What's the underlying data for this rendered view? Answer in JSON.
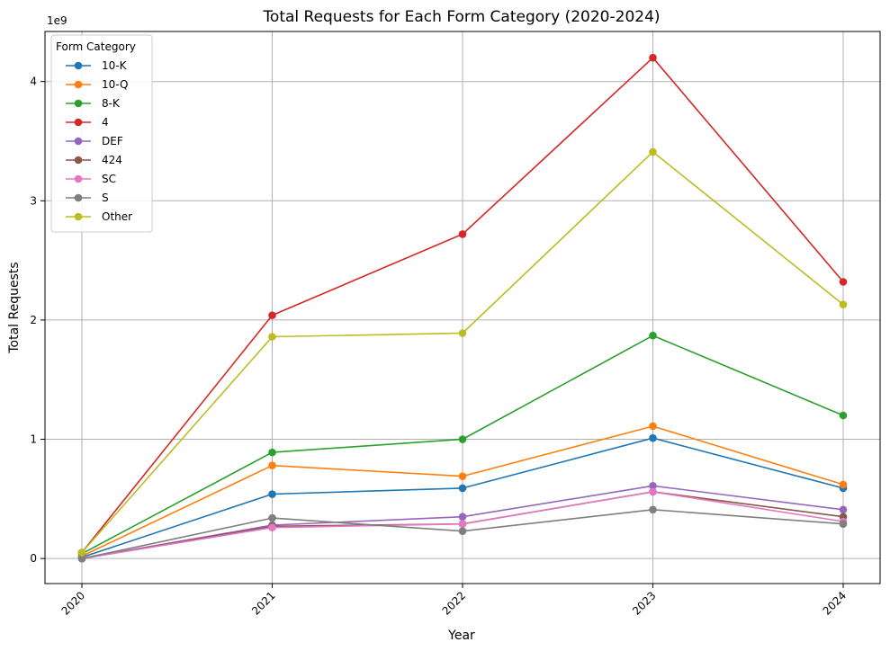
{
  "chart_data": {
    "type": "line",
    "title": "Total Requests for Each Form Category (2020-2024)",
    "xlabel": "Year",
    "ylabel": "Total Requests",
    "y_scale_label": "1e9",
    "x": [
      "2020",
      "2021",
      "2022",
      "2023",
      "2024"
    ],
    "y_ticks": [
      0,
      1,
      2,
      3,
      4
    ],
    "ylim": [
      -0.21,
      4.42
    ],
    "grid": true,
    "legend_title": "Form Category",
    "legend_position": "top-left",
    "series": [
      {
        "name": "10-K",
        "color": "#1f77b4",
        "values": [
          0.01,
          0.54,
          0.59,
          1.01,
          0.59
        ]
      },
      {
        "name": "10-Q",
        "color": "#ff7f0e",
        "values": [
          0.02,
          0.78,
          0.69,
          1.11,
          0.62
        ]
      },
      {
        "name": "8-K",
        "color": "#2ca02c",
        "values": [
          0.04,
          0.89,
          1.0,
          1.87,
          1.2
        ]
      },
      {
        "name": "4",
        "color": "#d62728",
        "values": [
          0.05,
          2.04,
          2.72,
          4.2,
          2.32
        ]
      },
      {
        "name": "DEF",
        "color": "#9467bd",
        "values": [
          0.0,
          0.28,
          0.35,
          0.61,
          0.41
        ]
      },
      {
        "name": "424",
        "color": "#8c564b",
        "values": [
          0.0,
          0.27,
          0.29,
          0.56,
          0.35
        ]
      },
      {
        "name": "SC",
        "color": "#e377c2",
        "values": [
          0.0,
          0.26,
          0.29,
          0.56,
          0.31
        ]
      },
      {
        "name": "S",
        "color": "#7f7f7f",
        "values": [
          0.0,
          0.34,
          0.23,
          0.41,
          0.29
        ]
      },
      {
        "name": "Other",
        "color": "#bcbd22",
        "values": [
          0.05,
          1.86,
          1.89,
          3.41,
          2.13
        ]
      }
    ]
  }
}
